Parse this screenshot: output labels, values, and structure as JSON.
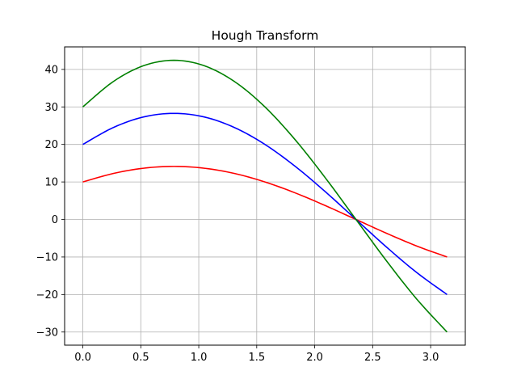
{
  "chart_data": {
    "type": "line",
    "title": "Hough Transform",
    "xlabel": "",
    "ylabel": "",
    "xlim": [
      -0.157,
      3.299
    ],
    "ylim": [
      -33.5,
      46.0
    ],
    "grid": true,
    "x_ticks": [
      0.0,
      0.5,
      1.0,
      1.5,
      2.0,
      2.5,
      3.0
    ],
    "x_tick_labels": [
      "0.0",
      "0.5",
      "1.0",
      "1.5",
      "2.0",
      "2.5",
      "3.0"
    ],
    "y_ticks": [
      -30,
      -20,
      -10,
      0,
      10,
      20,
      30,
      40
    ],
    "y_tick_labels": [
      "−30",
      "−20",
      "−10",
      "0",
      "10",
      "20",
      "30",
      "40"
    ],
    "x": [
      0.0,
      0.2618,
      0.5236,
      0.7854,
      1.0472,
      1.309,
      1.5708,
      1.8326,
      2.0944,
      2.3562,
      2.618,
      2.8798,
      3.1416
    ],
    "series": [
      {
        "color": "#ff0000",
        "values": [
          10.0,
          12.25,
          13.66,
          14.14,
          13.66,
          12.25,
          10.0,
          7.07,
          3.66,
          0.0,
          -3.66,
          -7.07,
          -10.0
        ]
      },
      {
        "color": "#0000ff",
        "values": [
          20.0,
          24.49,
          27.32,
          28.28,
          27.32,
          24.49,
          20.0,
          14.14,
          7.32,
          0.0,
          -7.32,
          -14.14,
          -20.0
        ]
      },
      {
        "color": "#008000",
        "values": [
          30.0,
          36.74,
          40.98,
          42.43,
          40.98,
          36.74,
          30.0,
          21.21,
          10.98,
          0.0,
          -10.98,
          -21.21,
          -30.0
        ]
      }
    ]
  }
}
